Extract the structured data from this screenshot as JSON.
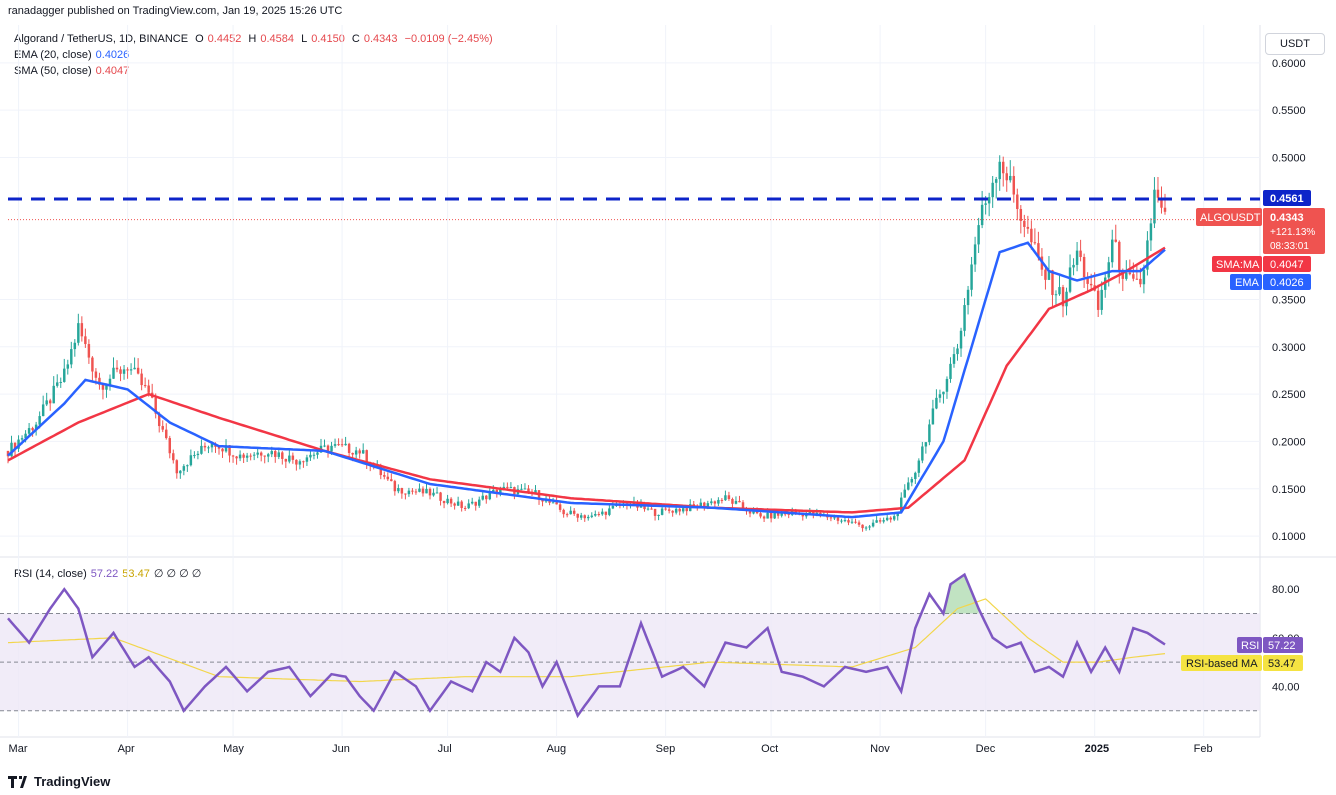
{
  "header": {
    "published_by": "ranadagger published on TradingView.com, Jan 19, 2025 15:26 UTC"
  },
  "legend": {
    "symbol": "Algorand / TetherUS, 1D, BINANCE",
    "ohlc": {
      "o_label": "O",
      "o": "0.4452",
      "h_label": "H",
      "h": "0.4584",
      "l_label": "L",
      "l": "0.4150",
      "c_label": "C",
      "c": "0.4343",
      "change": "−0.0109 (−2.45%)"
    },
    "ema_label": "EMA (20, close)",
    "ema_value": "0.4026",
    "sma_label": "SMA (50, close)",
    "sma_value": "0.4047",
    "rsi_label": "RSI (14, close)",
    "rsi_value": "57.22",
    "rsi_ma_value": "53.47",
    "rsi_extra": "∅ ∅ ∅ ∅"
  },
  "currency_button": "USDT",
  "price_axis": {
    "ticks": [
      "0.6000",
      "0.5500",
      "0.5000",
      "0.3500",
      "0.3000",
      "0.2500",
      "0.2000",
      "0.1500",
      "0.1000"
    ]
  },
  "labels": {
    "resistance": "0.4561",
    "symbol_tag": "ALGOUSDT",
    "price": "0.4343",
    "pct": "+121.13%",
    "countdown": "08:33:01",
    "sma_tag": "SMA:MA",
    "sma_val": "0.4047",
    "ema_tag": "EMA",
    "ema_val": "0.4026",
    "rsi_tag": "RSI",
    "rsi_val": "57.22",
    "rsi_ma_tag": "RSI-based MA",
    "rsi_ma_val": "53.47"
  },
  "rsi_axis": {
    "ticks": [
      "80.00",
      "60.00",
      "40.00"
    ]
  },
  "time_axis": {
    "labels": [
      "Mar",
      "Apr",
      "May",
      "Jun",
      "Jul",
      "Aug",
      "Sep",
      "Oct",
      "Nov",
      "Dec",
      "2025",
      "Feb"
    ]
  },
  "footer": {
    "brand": "TradingView"
  },
  "colors": {
    "up": "#26a69a",
    "down": "#ef5350",
    "ema": "#2962ff",
    "sma": "#f23645",
    "rsi": "#7e57c2",
    "rsi_ma": "#f2d64b",
    "resistance": "#0d24c9"
  },
  "chart_data": {
    "type": "candlestick",
    "title": "Algorand / TetherUS, 1D, BINANCE",
    "y_range": [
      0.08,
      0.64
    ],
    "resistance_level": 0.4561,
    "last_price": 0.4343,
    "x_months": [
      "Mar",
      "Apr",
      "May",
      "Jun",
      "Jul",
      "Aug",
      "Sep",
      "Oct",
      "Nov",
      "Dec",
      "2025",
      "Feb"
    ],
    "close_series": [
      [
        0,
        0.19
      ],
      [
        8,
        0.22
      ],
      [
        16,
        0.27
      ],
      [
        20,
        0.32
      ],
      [
        26,
        0.26
      ],
      [
        34,
        0.28
      ],
      [
        40,
        0.25
      ],
      [
        48,
        0.17
      ],
      [
        58,
        0.2
      ],
      [
        66,
        0.185
      ],
      [
        74,
        0.19
      ],
      [
        82,
        0.18
      ],
      [
        92,
        0.195
      ],
      [
        100,
        0.19
      ],
      [
        110,
        0.15
      ],
      [
        120,
        0.145
      ],
      [
        130,
        0.13
      ],
      [
        140,
        0.15
      ],
      [
        150,
        0.145
      ],
      [
        158,
        0.125
      ],
      [
        166,
        0.12
      ],
      [
        176,
        0.135
      ],
      [
        184,
        0.125
      ],
      [
        194,
        0.13
      ],
      [
        204,
        0.14
      ],
      [
        214,
        0.12
      ],
      [
        224,
        0.125
      ],
      [
        234,
        0.12
      ],
      [
        244,
        0.11
      ],
      [
        252,
        0.12
      ],
      [
        258,
        0.17
      ],
      [
        264,
        0.24
      ],
      [
        270,
        0.3
      ],
      [
        276,
        0.43
      ],
      [
        282,
        0.5
      ],
      [
        286,
        0.46
      ],
      [
        290,
        0.42
      ],
      [
        294,
        0.38
      ],
      [
        300,
        0.35
      ],
      [
        304,
        0.4
      ],
      [
        310,
        0.34
      ],
      [
        314,
        0.41
      ],
      [
        318,
        0.37
      ],
      [
        322,
        0.36
      ],
      [
        326,
        0.46
      ],
      [
        329,
        0.4343
      ]
    ],
    "ema20": [
      [
        0,
        0.185
      ],
      [
        16,
        0.24
      ],
      [
        22,
        0.265
      ],
      [
        34,
        0.255
      ],
      [
        46,
        0.22
      ],
      [
        60,
        0.195
      ],
      [
        90,
        0.19
      ],
      [
        120,
        0.155
      ],
      [
        160,
        0.135
      ],
      [
        200,
        0.13
      ],
      [
        240,
        0.12
      ],
      [
        254,
        0.125
      ],
      [
        266,
        0.2
      ],
      [
        274,
        0.3
      ],
      [
        282,
        0.4
      ],
      [
        290,
        0.41
      ],
      [
        296,
        0.38
      ],
      [
        304,
        0.37
      ],
      [
        314,
        0.38
      ],
      [
        322,
        0.38
      ],
      [
        329,
        0.4026
      ]
    ],
    "sma50": [
      [
        0,
        0.18
      ],
      [
        20,
        0.22
      ],
      [
        40,
        0.25
      ],
      [
        60,
        0.225
      ],
      [
        90,
        0.19
      ],
      [
        120,
        0.16
      ],
      [
        160,
        0.14
      ],
      [
        200,
        0.13
      ],
      [
        240,
        0.125
      ],
      [
        256,
        0.13
      ],
      [
        272,
        0.18
      ],
      [
        284,
        0.28
      ],
      [
        296,
        0.34
      ],
      [
        308,
        0.36
      ],
      [
        318,
        0.38
      ],
      [
        329,
        0.4047
      ]
    ],
    "rsi_range": [
      20,
      92
    ],
    "rsi_bands": [
      30,
      50,
      70
    ],
    "rsi": [
      [
        0,
        68
      ],
      [
        6,
        58
      ],
      [
        12,
        72
      ],
      [
        16,
        80
      ],
      [
        20,
        72
      ],
      [
        24,
        52
      ],
      [
        30,
        62
      ],
      [
        36,
        48
      ],
      [
        40,
        52
      ],
      [
        46,
        42
      ],
      [
        50,
        30
      ],
      [
        56,
        40
      ],
      [
        62,
        48
      ],
      [
        68,
        38
      ],
      [
        74,
        46
      ],
      [
        80,
        48
      ],
      [
        86,
        36
      ],
      [
        92,
        45
      ],
      [
        96,
        44
      ],
      [
        100,
        36
      ],
      [
        104,
        30
      ],
      [
        110,
        46
      ],
      [
        116,
        40
      ],
      [
        120,
        30
      ],
      [
        126,
        42
      ],
      [
        132,
        38
      ],
      [
        136,
        50
      ],
      [
        140,
        46
      ],
      [
        144,
        60
      ],
      [
        148,
        54
      ],
      [
        152,
        40
      ],
      [
        156,
        50
      ],
      [
        162,
        28
      ],
      [
        168,
        40
      ],
      [
        174,
        40
      ],
      [
        180,
        66
      ],
      [
        186,
        44
      ],
      [
        192,
        48
      ],
      [
        198,
        40
      ],
      [
        204,
        58
      ],
      [
        210,
        56
      ],
      [
        216,
        64
      ],
      [
        220,
        46
      ],
      [
        226,
        44
      ],
      [
        232,
        40
      ],
      [
        238,
        48
      ],
      [
        244,
        46
      ],
      [
        250,
        48
      ],
      [
        254,
        38
      ],
      [
        258,
        64
      ],
      [
        262,
        78
      ],
      [
        266,
        70
      ],
      [
        268,
        82
      ],
      [
        272,
        86
      ],
      [
        276,
        72
      ],
      [
        280,
        60
      ],
      [
        284,
        56
      ],
      [
        288,
        58
      ],
      [
        292,
        46
      ],
      [
        296,
        48
      ],
      [
        300,
        44
      ],
      [
        304,
        58
      ],
      [
        308,
        46
      ],
      [
        312,
        56
      ],
      [
        316,
        46
      ],
      [
        320,
        64
      ],
      [
        324,
        62
      ],
      [
        329,
        57.22
      ]
    ],
    "rsi_ma": [
      [
        0,
        58
      ],
      [
        30,
        60
      ],
      [
        60,
        44
      ],
      [
        100,
        42
      ],
      [
        130,
        44
      ],
      [
        160,
        44
      ],
      [
        200,
        50
      ],
      [
        240,
        48
      ],
      [
        258,
        56
      ],
      [
        270,
        72
      ],
      [
        278,
        76
      ],
      [
        290,
        60
      ],
      [
        300,
        50
      ],
      [
        310,
        50
      ],
      [
        320,
        52
      ],
      [
        329,
        53.47
      ]
    ]
  }
}
